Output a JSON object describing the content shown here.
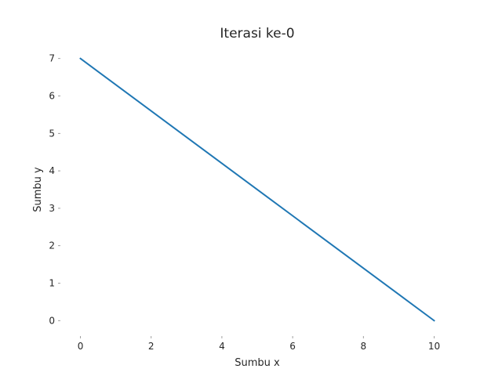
{
  "chart_data": {
    "type": "line",
    "title": "Iterasi ke-0",
    "xlabel": "Sumbu x",
    "ylabel": "Sumbu y",
    "xlim": [
      -0.5,
      10.5
    ],
    "ylim": [
      -0.35,
      7.35
    ],
    "xticks": [
      0,
      2,
      4,
      6,
      8,
      10
    ],
    "yticks": [
      0,
      1,
      2,
      3,
      4,
      5,
      6,
      7
    ],
    "grid": false,
    "series": [
      {
        "color": "#1f77b4",
        "x": [
          0,
          10
        ],
        "y": [
          7,
          0
        ]
      }
    ]
  }
}
